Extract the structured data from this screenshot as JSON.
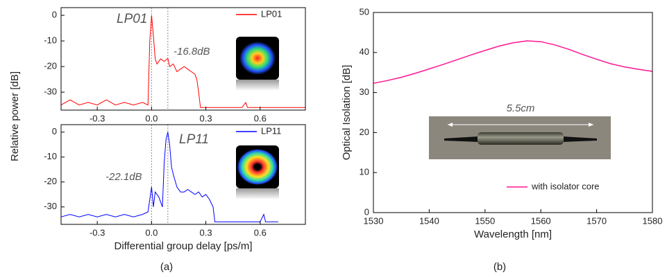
{
  "chart_data": [
    {
      "type": "line",
      "ylabel": "Relative power [dB]",
      "x": [
        -0.5,
        -0.45,
        -0.4,
        -0.35,
        -0.3,
        -0.25,
        -0.2,
        -0.15,
        -0.1,
        -0.05,
        -0.02,
        -0.01,
        0,
        0.01,
        0.02,
        0.03,
        0.05,
        0.07,
        0.09,
        0.1,
        0.12,
        0.14,
        0.16,
        0.18,
        0.2,
        0.22,
        0.24,
        0.25,
        0.26,
        0.27,
        0.3,
        0.4,
        0.5,
        0.52,
        0.53,
        0.6,
        0.7,
        0.85
      ],
      "series": [
        {
          "name": "LP01",
          "color": "#ff0000",
          "values": [
            -35,
            -33,
            -35,
            -34,
            -35,
            -33,
            -35,
            -34,
            -35,
            -34,
            -35,
            -10,
            0,
            -8,
            -17,
            -19,
            -17,
            -18,
            -16.8,
            -20,
            -19,
            -22,
            -21,
            -20,
            -21,
            -22,
            -23,
            -25,
            -30,
            -36,
            -36,
            -36,
            -36,
            -34,
            -36,
            -36,
            -36,
            -36
          ]
        }
      ],
      "xlim": [
        -0.5,
        0.85
      ],
      "ylim": [
        -37,
        3
      ],
      "xticks": [
        -0.3,
        {
          "value": 0,
          "label": "0.0"
        },
        0.3,
        0.6
      ],
      "yticks": [
        0,
        -10,
        -20,
        -30
      ],
      "vlines": [
        0,
        0.09
      ],
      "annotations": [
        "LP01",
        "-16.8dB"
      ],
      "legend": "upper right"
    },
    {
      "type": "line",
      "xlabel": "Differential group delay [ps/m]",
      "x": [
        -0.5,
        -0.45,
        -0.4,
        -0.35,
        -0.3,
        -0.25,
        -0.2,
        -0.15,
        -0.1,
        -0.05,
        -0.02,
        0,
        0.01,
        0.02,
        0.04,
        0.06,
        0.07,
        0.08,
        0.09,
        0.1,
        0.11,
        0.12,
        0.14,
        0.16,
        0.18,
        0.2,
        0.22,
        0.24,
        0.26,
        0.28,
        0.3,
        0.32,
        0.34,
        0.35,
        0.45,
        0.6,
        0.62,
        0.63,
        0.7
      ],
      "series": [
        {
          "name": "LP11",
          "color": "#0000ff",
          "values": [
            -34,
            -33,
            -34,
            -33,
            -34,
            -33,
            -34,
            -33,
            -34,
            -33,
            -32,
            -22,
            -30,
            -24,
            -26,
            -30,
            -12,
            -3,
            0,
            -5,
            -14,
            -17,
            -22,
            -24,
            -24,
            -23,
            -24,
            -25,
            -24,
            -26,
            -25,
            -27,
            -30,
            -36,
            -36,
            -36,
            -33,
            -36,
            -36
          ]
        }
      ],
      "xlim": [
        -0.5,
        0.85
      ],
      "ylim": [
        -37,
        3
      ],
      "xticks": [
        -0.3,
        {
          "value": 0,
          "label": "0.0"
        },
        0.3,
        0.6
      ],
      "yticks": [
        0,
        -10,
        -20,
        -30
      ],
      "vlines": [
        0,
        0.09
      ],
      "annotations": [
        "LP11",
        "-22.1dB"
      ],
      "legend": "upper right"
    },
    {
      "type": "line",
      "xlabel": "Wavelength [nm]",
      "ylabel": "Optical Isolation [dB]",
      "x": [
        1530,
        1532.5,
        1535,
        1537.5,
        1540,
        1542.5,
        1545,
        1547.5,
        1550,
        1552.5,
        1555,
        1557.5,
        1560,
        1562.5,
        1565,
        1567.5,
        1570,
        1572.5,
        1575,
        1577.5,
        1580
      ],
      "series": [
        {
          "name": "with isolator core",
          "color": "#ff1493",
          "values": [
            32.3,
            33,
            33.8,
            34.8,
            35.9,
            37,
            38.2,
            39.4,
            40.5,
            41.6,
            42.4,
            42.9,
            42.7,
            41.9,
            40.8,
            39.5,
            38.3,
            37.2,
            36.4,
            35.8,
            35.3
          ]
        }
      ],
      "xlim": [
        1530,
        1580
      ],
      "ylim": [
        0,
        50
      ],
      "xticks": [
        1530,
        1540,
        1550,
        1560,
        1570,
        1580
      ],
      "yticks": [
        0,
        10,
        20,
        30,
        40,
        50
      ],
      "annotations": [
        "5.5cm"
      ],
      "legend": "lower right"
    }
  ],
  "panel_labels": [
    "(a)",
    "(b)"
  ]
}
